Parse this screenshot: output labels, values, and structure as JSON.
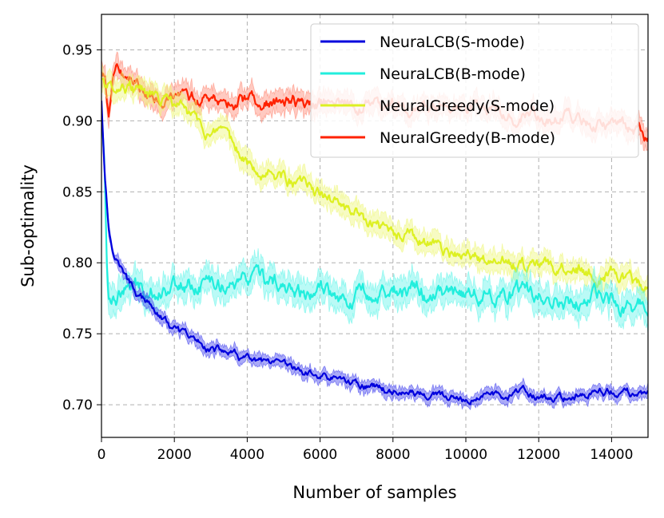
{
  "chart_data": {
    "type": "line",
    "title": "",
    "xlabel": "Number of samples",
    "ylabel": "Sub-optimality",
    "xlim": [
      0,
      15000
    ],
    "ylim": [
      0.677,
      0.975
    ],
    "grid": true,
    "legend_position": "top-right",
    "x_ticks": [
      0,
      2000,
      4000,
      6000,
      8000,
      10000,
      12000,
      14000
    ],
    "x_tick_labels": [
      "0",
      "2000",
      "4000",
      "6000",
      "8000",
      "10000",
      "12000",
      "14000"
    ],
    "y_ticks": [
      0.7,
      0.75,
      0.8,
      0.85,
      0.9,
      0.95
    ],
    "y_tick_labels": [
      "0.70",
      "0.75",
      "0.80",
      "0.85",
      "0.90",
      "0.95"
    ],
    "series": [
      {
        "name": "NeuraLCB(S-mode)",
        "color": "#0000dd",
        "band_color": "#4444ee",
        "band_halfwidth": 0.004,
        "x": [
          0,
          100,
          200,
          300,
          500,
          700,
          1000,
          1500,
          2000,
          2500,
          3000,
          3500,
          4000,
          5000,
          6000,
          7000,
          8000,
          9000,
          9500,
          10000,
          10300,
          10600,
          11000,
          11500,
          12000,
          12500,
          13000,
          13500,
          14000,
          14500,
          15000
        ],
        "values": [
          0.915,
          0.86,
          0.825,
          0.81,
          0.8,
          0.788,
          0.777,
          0.765,
          0.752,
          0.745,
          0.74,
          0.736,
          0.731,
          0.725,
          0.72,
          0.715,
          0.71,
          0.706,
          0.705,
          0.7,
          0.705,
          0.708,
          0.706,
          0.708,
          0.705,
          0.704,
          0.706,
          0.708,
          0.709,
          0.707,
          0.706
        ]
      },
      {
        "name": "NeuraLCB(B-mode)",
        "color": "#22eedd",
        "band_color": "#66f5ea",
        "band_halfwidth": 0.009,
        "x": [
          0,
          80,
          150,
          200,
          500,
          1000,
          1500,
          2000,
          2500,
          3000,
          4000,
          4500,
          5000,
          6000,
          7000,
          8000,
          9000,
          10000,
          11000,
          12000,
          13000,
          14000,
          15000
        ],
        "values": [
          0.905,
          0.87,
          0.8,
          0.778,
          0.78,
          0.782,
          0.783,
          0.786,
          0.785,
          0.786,
          0.787,
          0.784,
          0.781,
          0.777,
          0.779,
          0.781,
          0.778,
          0.778,
          0.778,
          0.776,
          0.774,
          0.771,
          0.768
        ]
      },
      {
        "name": "NeuralGreedy(S-mode)",
        "color": "#ddf022",
        "band_color": "#eef77a",
        "band_halfwidth": 0.007,
        "x": [
          0,
          200,
          500,
          800,
          1000,
          1500,
          2000,
          2500,
          3000,
          3500,
          4000,
          4500,
          5000,
          6000,
          7000,
          8000,
          9000,
          10000,
          11000,
          12000,
          13000,
          14000,
          15000
        ],
        "values": [
          0.93,
          0.925,
          0.928,
          0.925,
          0.92,
          0.915,
          0.912,
          0.902,
          0.89,
          0.88,
          0.872,
          0.866,
          0.86,
          0.848,
          0.832,
          0.82,
          0.812,
          0.802,
          0.8,
          0.796,
          0.795,
          0.792,
          0.78
        ]
      },
      {
        "name": "NeuralGreedy(B-mode)",
        "color": "#ff2200",
        "band_color": "#ff8a76",
        "band_halfwidth": 0.007,
        "x": [
          0,
          100,
          200,
          300,
          400,
          500,
          800,
          1000,
          1500,
          2000,
          3000,
          4000,
          5000,
          6000,
          7000,
          8000,
          9000,
          10000,
          11000,
          12000,
          13000,
          14000,
          15000
        ],
        "values": [
          0.935,
          0.928,
          0.9,
          0.925,
          0.94,
          0.938,
          0.93,
          0.925,
          0.92,
          0.916,
          0.914,
          0.914,
          0.913,
          0.912,
          0.911,
          0.91,
          0.909,
          0.908,
          0.906,
          0.903,
          0.899,
          0.894,
          0.89
        ]
      }
    ]
  }
}
